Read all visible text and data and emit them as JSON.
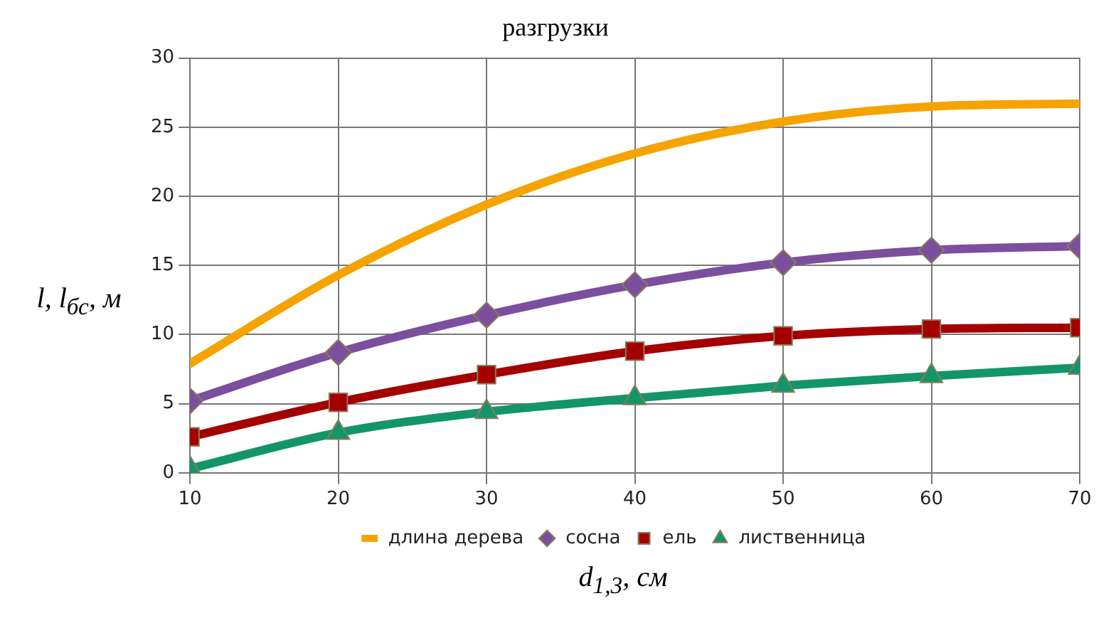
{
  "chart_data": {
    "type": "line",
    "title": "разгрузки",
    "xlabel": "d$_{1,3}$, см",
    "ylabel": "l, l$_{бс}$, м",
    "x": [
      10,
      20,
      30,
      40,
      50,
      60,
      70
    ],
    "xlim": [
      10,
      70
    ],
    "xticks": [
      10,
      20,
      30,
      40,
      50,
      60,
      70
    ],
    "ylim": [
      0,
      30
    ],
    "yticks": [
      0,
      5,
      10,
      15,
      20,
      25,
      30
    ],
    "grid": true,
    "legend": "bottom",
    "line_style": "solid",
    "series": [
      {
        "name": "длина дерева",
        "color": "#f5a300",
        "marker": "none",
        "values": [
          7.9,
          14.3,
          19.4,
          23.1,
          25.4,
          26.5,
          26.7
        ]
      },
      {
        "name": "сосна",
        "color": "#7b4f9d",
        "marker": "diamond",
        "values": [
          5.2,
          8.7,
          11.4,
          13.6,
          15.2,
          16.1,
          16.4
        ]
      },
      {
        "name": "ель",
        "color": "#a50000",
        "marker": "square",
        "values": [
          2.6,
          5.1,
          7.1,
          8.8,
          9.9,
          10.4,
          10.5
        ]
      },
      {
        "name": "лиственница",
        "color": "#13956a",
        "marker": "triangle",
        "values": [
          0.3,
          2.9,
          4.4,
          5.4,
          6.3,
          7.0,
          7.6
        ]
      }
    ]
  }
}
